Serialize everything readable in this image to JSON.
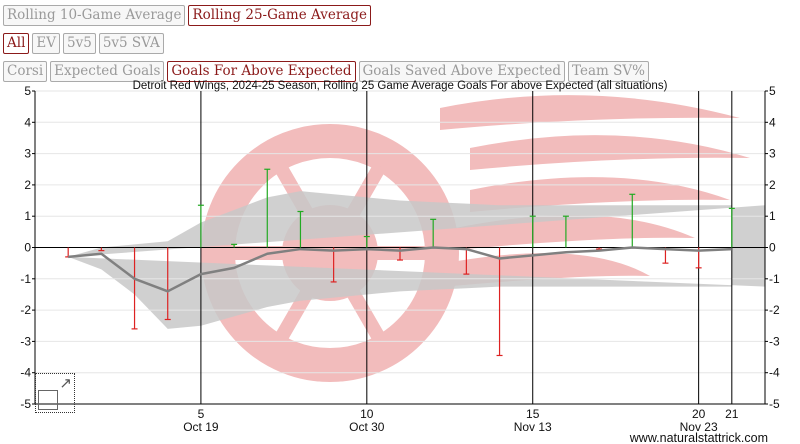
{
  "controls": {
    "window": [
      {
        "label": "Rolling 10-Game Average",
        "active": false
      },
      {
        "label": "Rolling 25-Game Average",
        "active": true
      }
    ],
    "situation": [
      {
        "label": "All",
        "active": true
      },
      {
        "label": "EV",
        "active": false
      },
      {
        "label": "5v5",
        "active": false
      },
      {
        "label": "5v5 SVA",
        "active": false
      }
    ],
    "metric": [
      {
        "label": "Corsi",
        "active": false
      },
      {
        "label": "Expected Goals",
        "active": false
      },
      {
        "label": "Goals For Above Expected",
        "active": true
      },
      {
        "label": "Goals Saved Above Expected",
        "active": false
      },
      {
        "label": "Team SV%",
        "active": false
      }
    ]
  },
  "watermark": "www.naturalstattrick.com",
  "colors": {
    "positive_bar": "#22aa22",
    "negative_bar": "#dd2222",
    "rolling_line": "#808080",
    "range_band": "#c8c8c8",
    "logo": "#f2bcbc",
    "active_button": "#8b1a1a"
  },
  "chart_data": {
    "type": "line",
    "title": "Detroit Red Wings, 2024-25 Season, Rolling 25 Game Average Goals For above Expected (all situations)",
    "xlabel": "",
    "ylabel": "",
    "xlim": [
      0,
      22
    ],
    "ylim": [
      -5,
      5
    ],
    "y_ticks": [
      -5,
      -4,
      -3,
      -2,
      -1,
      0,
      1,
      2,
      3,
      4,
      5
    ],
    "x_ticks": [
      {
        "x": 5,
        "label": "5",
        "date": "Oct 19"
      },
      {
        "x": 10,
        "label": "10",
        "date": "Oct 30"
      },
      {
        "x": 15,
        "label": "15",
        "date": "Nov 13"
      },
      {
        "x": 20,
        "label": "20",
        "date": "Nov 23"
      },
      {
        "x": 21,
        "label": "21",
        "date": ""
      }
    ],
    "grid": "vertical lines at labeled games",
    "series": [
      {
        "kind": "game_bars",
        "x": [
          1,
          2,
          3,
          4,
          5,
          6,
          7,
          8,
          9,
          10,
          11,
          12,
          13,
          14,
          15,
          16,
          17,
          18,
          19,
          20,
          21
        ],
        "values": [
          -0.3,
          -0.1,
          -2.6,
          -2.3,
          1.35,
          0.1,
          2.5,
          1.15,
          -1.1,
          0.35,
          -0.4,
          0.9,
          -0.85,
          -3.45,
          1.0,
          1.0,
          -0.05,
          1.7,
          -0.5,
          -0.65,
          1.25
        ]
      },
      {
        "kind": "rolling_average",
        "x": [
          1,
          2,
          3,
          4,
          5,
          6,
          7,
          8,
          9,
          10,
          11,
          12,
          13,
          14,
          15,
          16,
          17,
          18,
          19,
          20,
          21
        ],
        "values": [
          -0.3,
          -0.2,
          -1.0,
          -1.4,
          -0.85,
          -0.65,
          -0.2,
          -0.05,
          -0.1,
          -0.05,
          -0.1,
          0,
          -0.05,
          -0.35,
          -0.25,
          -0.15,
          -0.1,
          0,
          -0.05,
          -0.1,
          -0.05
        ]
      },
      {
        "kind": "league_range",
        "x": [
          1,
          2,
          3,
          4,
          5,
          6,
          7,
          8,
          9,
          10,
          11,
          12,
          13,
          14,
          15,
          16,
          17,
          18,
          19,
          20,
          21
        ],
        "upper": [
          -0.3,
          0,
          0.1,
          0.2,
          0.8,
          1.2,
          1.6,
          1.8,
          1.7,
          1.6,
          1.5,
          1.45,
          1.4,
          1.35,
          1.35,
          1.35,
          1.35,
          1.35,
          1.35,
          1.35,
          1.35
        ],
        "lower": [
          -0.3,
          -0.7,
          -1.5,
          -2.6,
          -2.5,
          -2.2,
          -1.9,
          -1.7,
          -1.6,
          -1.5,
          -1.4,
          -1.35,
          -1.3,
          -1.25,
          -1.25,
          -1.25,
          -1.25,
          -1.25,
          -1.25,
          -1.25,
          -1.25
        ]
      }
    ]
  }
}
